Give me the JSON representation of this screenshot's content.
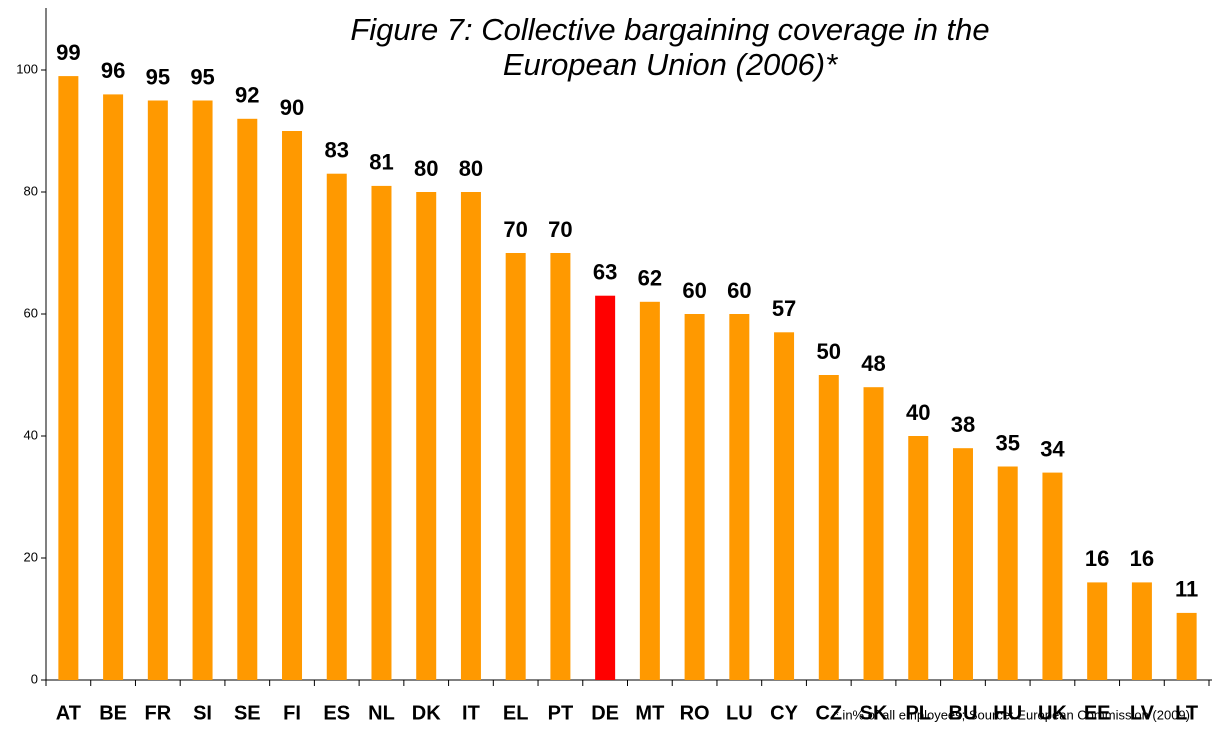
{
  "chart_data": {
    "type": "bar",
    "title": "Figure 7: Collective bargaining coverage in the European Union (2006)*",
    "note": "* in% of all employees; Source: European Commission (2009)",
    "categories": [
      "AT",
      "BE",
      "FR",
      "SI",
      "SE",
      "FI",
      "ES",
      "NL",
      "DK",
      "IT",
      "EL",
      "PT",
      "DE",
      "MT",
      "RO",
      "LU",
      "CY",
      "CZ",
      "SK",
      "PL",
      "BU",
      "HU",
      "UK",
      "EE",
      "LV",
      "LT"
    ],
    "values": [
      99,
      96,
      95,
      95,
      92,
      90,
      83,
      81,
      80,
      80,
      70,
      70,
      63,
      62,
      60,
      60,
      57,
      50,
      48,
      40,
      38,
      35,
      34,
      16,
      16,
      11
    ],
    "colors": [
      "#FF9900",
      "#FF9900",
      "#FF9900",
      "#FF9900",
      "#FF9900",
      "#FF9900",
      "#FF9900",
      "#FF9900",
      "#FF9900",
      "#FF9900",
      "#FF9900",
      "#FF9900",
      "#FF0000",
      "#FF9900",
      "#FF9900",
      "#FF9900",
      "#FF9900",
      "#FF9900",
      "#FF9900",
      "#FF9900",
      "#FF9900",
      "#FF9900",
      "#FF9900",
      "#FF9900",
      "#FF9900",
      "#FF9900"
    ],
    "ylim": [
      0,
      100
    ],
    "yticks": [
      0,
      20,
      40,
      60,
      80,
      100
    ],
    "grid": false
  }
}
